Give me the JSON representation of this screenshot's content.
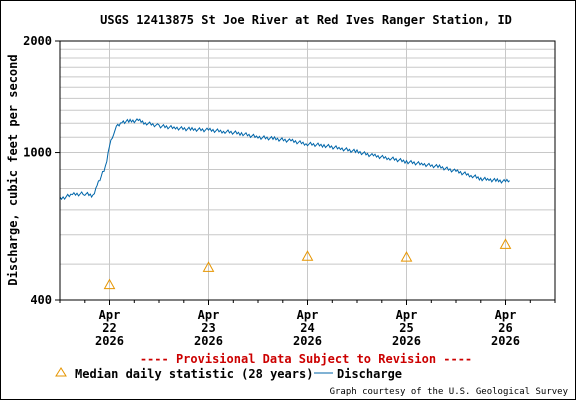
{
  "chart_data": {
    "type": "line",
    "title": "USGS 12413875 St Joe River at Red Ives Ranger Station, ID",
    "ylabel": "Discharge, cubic feet per second",
    "y_scale": "log",
    "ylim": [
      400,
      2000
    ],
    "y_ticks": [
      "2000",
      "1000",
      "400"
    ],
    "x_ticks": [
      {
        "month": "Apr",
        "day": "22",
        "year": "2026"
      },
      {
        "month": "Apr",
        "day": "23",
        "year": "2026"
      },
      {
        "month": "Apr",
        "day": "24",
        "year": "2026"
      },
      {
        "month": "Apr",
        "day": "25",
        "year": "2026"
      },
      {
        "month": "Apr",
        "day": "26",
        "year": "2026"
      }
    ],
    "xlim": [
      "2026-04-21 12:00",
      "2026-04-26 12:00"
    ],
    "grid": true,
    "legend_position": "bottom",
    "series": [
      {
        "name": "Discharge",
        "color": "#0066aa",
        "style": "line",
        "points": [
          [
            "2026-04-21 12:00",
            750
          ],
          [
            "2026-04-21 15:00",
            770
          ],
          [
            "2026-04-21 18:00",
            775
          ],
          [
            "2026-04-21 20:00",
            765
          ],
          [
            "2026-04-21 21:00",
            820
          ],
          [
            "2026-04-21 23:00",
            910
          ],
          [
            "2026-04-22 00:00",
            1040
          ],
          [
            "2026-04-22 01:00",
            1130
          ],
          [
            "2026-04-22 02:00",
            1185
          ],
          [
            "2026-04-22 03:00",
            1210
          ],
          [
            "2026-04-22 05:00",
            1215
          ],
          [
            "2026-04-22 07:00",
            1220
          ],
          [
            "2026-04-22 09:00",
            1200
          ],
          [
            "2026-04-22 12:00",
            1180
          ],
          [
            "2026-04-22 16:00",
            1165
          ],
          [
            "2026-04-22 20:00",
            1155
          ],
          [
            "2026-04-23 00:00",
            1150
          ],
          [
            "2026-04-23 04:00",
            1140
          ],
          [
            "2026-04-23 08:00",
            1125
          ],
          [
            "2026-04-23 12:00",
            1100
          ],
          [
            "2026-04-23 16:00",
            1090
          ],
          [
            "2026-04-23 20:00",
            1075
          ],
          [
            "2026-04-24 00:00",
            1055
          ],
          [
            "2026-04-24 04:00",
            1045
          ],
          [
            "2026-04-24 08:00",
            1025
          ],
          [
            "2026-04-24 12:00",
            1005
          ],
          [
            "2026-04-24 16:00",
            980
          ],
          [
            "2026-04-24 20:00",
            965
          ],
          [
            "2026-04-25 00:00",
            945
          ],
          [
            "2026-04-25 04:00",
            930
          ],
          [
            "2026-04-25 08:00",
            915
          ],
          [
            "2026-04-25 12:00",
            890
          ],
          [
            "2026-04-25 16:00",
            865
          ],
          [
            "2026-04-25 18:00",
            850
          ],
          [
            "2026-04-25 20:00",
            845
          ],
          [
            "2026-04-25 22:00",
            840
          ],
          [
            "2026-04-26 00:00",
            835
          ],
          [
            "2026-04-26 01:00",
            840
          ]
        ]
      },
      {
        "name": "Median daily statistic (28 years)",
        "color": "#e69500",
        "style": "triangle",
        "points": [
          [
            "2026-04-22 00:00",
            440
          ],
          [
            "2026-04-23 00:00",
            490
          ],
          [
            "2026-04-24 00:00",
            525
          ],
          [
            "2026-04-25 00:00",
            522
          ],
          [
            "2026-04-26 00:00",
            565
          ]
        ]
      }
    ]
  },
  "provisional_notice": "---- Provisional Data Subject to Revision ----",
  "credit": "Graph courtesy of the U.S. Geological Survey"
}
